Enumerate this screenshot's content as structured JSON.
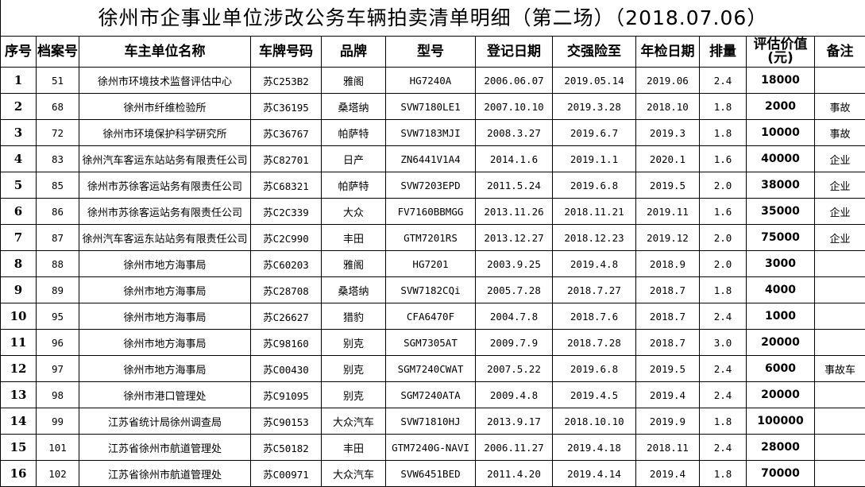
{
  "title": "徐州市企事业单位涉改公务车辆拍卖清单明细（第二场）（2018.07.06）",
  "headers": [
    "序号",
    "档案号",
    "车主单位名称",
    "车牌号码",
    "品牌",
    "型号",
    "登记日期",
    "交强险至",
    "年检日期",
    "排量",
    "评估价值(元)",
    "备注"
  ],
  "rows": [
    [
      "1",
      "51",
      "徐州市环境技术监督评估中心",
      "苏C253B2",
      "雅阁",
      "HG7240A",
      "2006.06.07",
      "2019.05.14",
      "2019.06",
      "2.4",
      "18000",
      ""
    ],
    [
      "2",
      "68",
      "徐州市纤维检验所",
      "苏C36195",
      "桑塔纳",
      "SVW7180LE1",
      "2007.10.10",
      "2019.3.28",
      "2018.10",
      "1.8",
      "2000",
      "事故"
    ],
    [
      "3",
      "72",
      "徐州市环境保护科学研究所",
      "苏C36767",
      "帕萨特",
      "SVW7183MJI",
      "2008.3.27",
      "2019.6.7",
      "2019.3",
      "1.8",
      "10000",
      "事故"
    ],
    [
      "4",
      "83",
      "徐州汽车客运东站站务有限责任公司",
      "苏C82701",
      "日产",
      "ZN6441V1A4",
      "2014.1.6",
      "2019.1.1",
      "2020.1",
      "1.6",
      "40000",
      "企业"
    ],
    [
      "5",
      "85",
      "徐州市苏徐客运站务有限责任公司",
      "苏C68321",
      "帕萨特",
      "SVW7203EPD",
      "2011.5.24",
      "2019.6.8",
      "2019.5",
      "2.0",
      "38000",
      "企业"
    ],
    [
      "6",
      "86",
      "徐州市苏徐客运站务有限责任公司",
      "苏C2C339",
      "大众",
      "FV7160BBMGG",
      "2013.11.26",
      "2018.11.21",
      "2019.11",
      "1.6",
      "35000",
      "企业"
    ],
    [
      "7",
      "87",
      "徐州汽车客运东站站务有限责任公司",
      "苏C2C990",
      "丰田",
      "GTM7201RS",
      "2013.12.27",
      "2018.12.23",
      "2019.12",
      "2.0",
      "75000",
      "企业"
    ],
    [
      "8",
      "88",
      "徐州市地方海事局",
      "苏C60203",
      "雅阁",
      "HG7201",
      "2003.9.25",
      "2019.4.8",
      "2018.9",
      "2.0",
      "3000",
      ""
    ],
    [
      "9",
      "89",
      "徐州市地方海事局",
      "苏C28708",
      "桑塔纳",
      "SVW7182CQi",
      "2005.7.28",
      "2018.7.27",
      "2018.7",
      "1.8",
      "4000",
      ""
    ],
    [
      "10",
      "95",
      "徐州市地方海事局",
      "苏C26627",
      "猎豹",
      "CFA6470F",
      "2004.7.8",
      "2018.7.6",
      "2018.7",
      "2.4",
      "1000",
      ""
    ],
    [
      "11",
      "96",
      "徐州市地方海事局",
      "苏C98160",
      "别克",
      "SGM7305AT",
      "2009.7.9",
      "2018.7.28",
      "2018.7",
      "3.0",
      "20000",
      ""
    ],
    [
      "12",
      "97",
      "徐州市地方海事局",
      "苏C00430",
      "别克",
      "SGM7240CWAT",
      "2007.5.22",
      "2019.6.8",
      "2019.5",
      "2.4",
      "6000",
      "事故车"
    ],
    [
      "13",
      "98",
      "徐州市港口管理处",
      "苏C91095",
      "别克",
      "SGM7240ATA",
      "2009.4.8",
      "2019.4.5",
      "2019.4",
      "2.4",
      "20000",
      ""
    ],
    [
      "14",
      "99",
      "江苏省统计局徐州调查局",
      "苏C90153",
      "大众汽车",
      "SVW71810HJ",
      "2013.9.17",
      "2018.10.10",
      "2019.9",
      "1.8",
      "100000",
      ""
    ],
    [
      "15",
      "101",
      "江苏省徐州市航道管理处",
      "苏C50182",
      "丰田",
      "GTM7240G-NAVI",
      "2006.11.27",
      "2019.4.18",
      "2018.11",
      "2.4",
      "28000",
      ""
    ],
    [
      "16",
      "102",
      "江苏省徐州市航道管理处",
      "苏C00971",
      "大众汽车",
      "SVW6451BED",
      "2011.4.20",
      "2019.4.14",
      "2019.4",
      "1.8",
      "70000",
      ""
    ]
  ]
}
